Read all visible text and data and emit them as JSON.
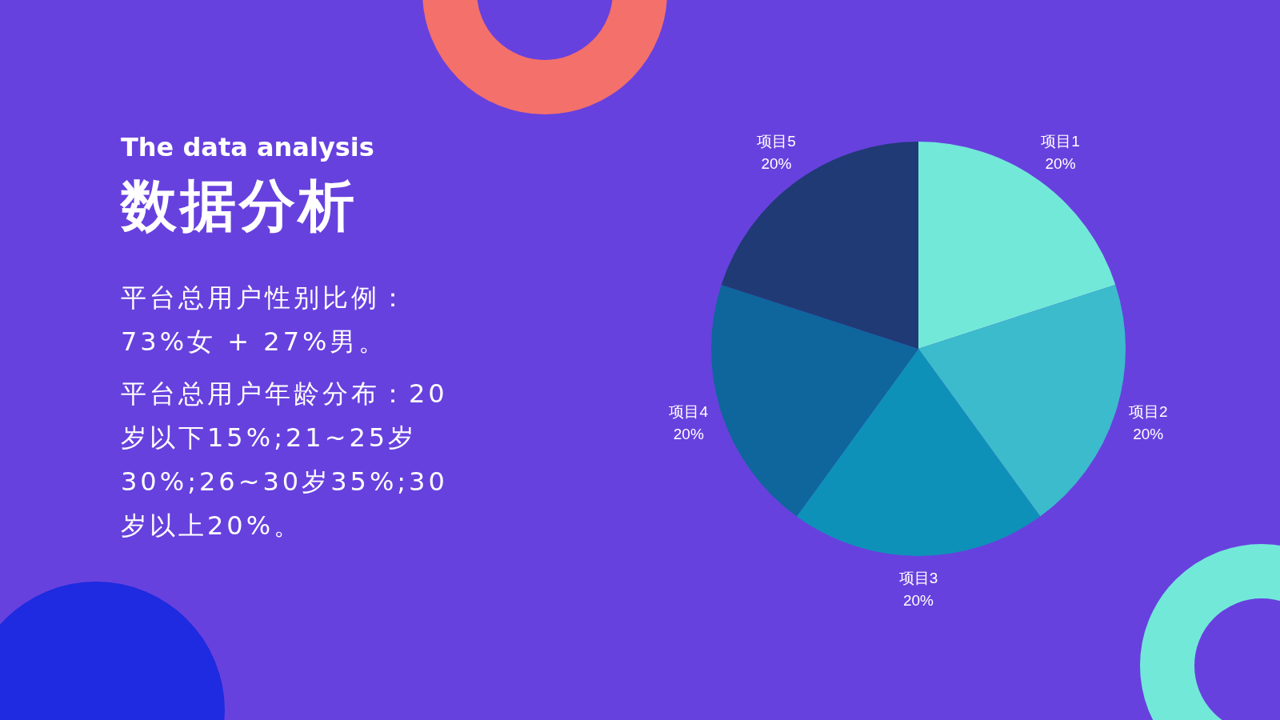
{
  "chart_data": {
    "type": "pie",
    "subtitle": "The data analysis",
    "title": "数据分析",
    "annotations": [
      "平台总用户性别比例：73%女 + 27%男。",
      "平台总用户年龄分布：20岁以下15%;21~25岁30%;26~30岁35%;30岁以上20%。"
    ],
    "categories": [
      "项目1",
      "项目2",
      "项目3",
      "项目4",
      "项目5"
    ],
    "values": [
      20,
      20,
      20,
      20,
      20
    ],
    "colors": [
      "#72e8d9",
      "#3bbbcc",
      "#0e91b9",
      "#0e669c",
      "#1f3a75"
    ],
    "value_labels": [
      "20%",
      "20%",
      "20%",
      "20%",
      "20%"
    ],
    "legend": false
  }
}
